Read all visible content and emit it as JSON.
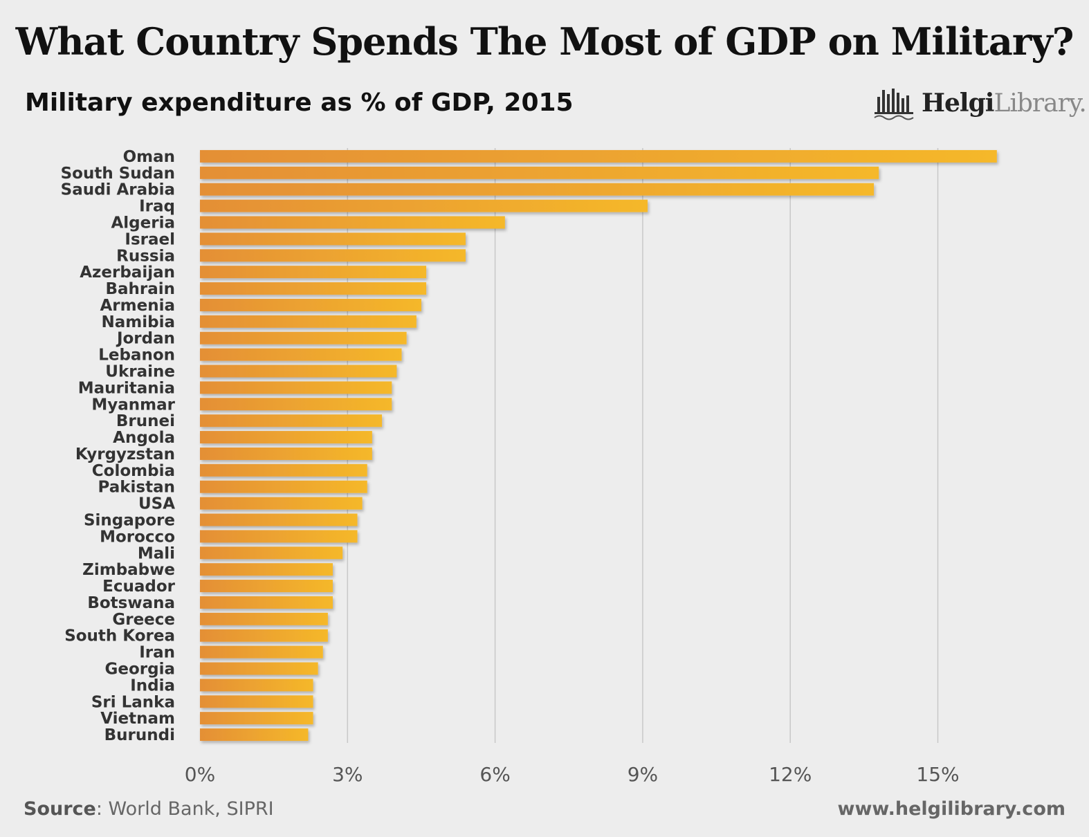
{
  "header": {
    "title": "What Country Spends The Most of GDP on Military?",
    "subtitle": "Military expenditure as % of GDP, 2015"
  },
  "logo": {
    "part1": "Helgi",
    "part2": "Library."
  },
  "footer": {
    "source_label": "Source",
    "source_text": ": World Bank, SIPRI",
    "website": "www.helgilibrary.com"
  },
  "colors": {
    "bar_start": "#e48f36",
    "bar_end": "#f5b82a",
    "grid": "#c8c8c8",
    "background": "#ededed"
  },
  "chart_data": {
    "type": "bar",
    "orientation": "horizontal",
    "title": "What Country Spends The Most of GDP on Military?",
    "subtitle": "Military expenditure as % of GDP, 2015",
    "categories": [
      "Oman",
      "South Sudan",
      "Saudi Arabia",
      "Iraq",
      "Algeria",
      "Israel",
      "Russia",
      "Azerbaijan",
      "Bahrain",
      "Armenia",
      "Namibia",
      "Jordan",
      "Lebanon",
      "Ukraine",
      "Mauritania",
      "Myanmar",
      "Brunei",
      "Angola",
      "Kyrgyzstan",
      "Colombia",
      "Pakistan",
      "USA",
      "Singapore",
      "Morocco",
      "Mali",
      "Zimbabwe",
      "Ecuador",
      "Botswana",
      "Greece",
      "South Korea",
      "Iran",
      "Georgia",
      "India",
      "Sri Lanka",
      "Vietnam",
      "Burundi"
    ],
    "values": [
      16.2,
      13.8,
      13.7,
      9.1,
      6.2,
      5.4,
      5.4,
      4.6,
      4.6,
      4.5,
      4.4,
      4.2,
      4.1,
      4.0,
      3.9,
      3.9,
      3.7,
      3.5,
      3.5,
      3.4,
      3.4,
      3.3,
      3.2,
      3.2,
      2.9,
      2.7,
      2.7,
      2.7,
      2.6,
      2.6,
      2.5,
      2.4,
      2.3,
      2.3,
      2.3,
      2.2
    ],
    "xlim": [
      0,
      16.8
    ],
    "xticks": [
      0,
      3,
      6,
      9,
      12,
      15
    ],
    "xtick_labels": [
      "0%",
      "3%",
      "6%",
      "9%",
      "12%",
      "15%"
    ],
    "grid": true,
    "legend": "none"
  }
}
